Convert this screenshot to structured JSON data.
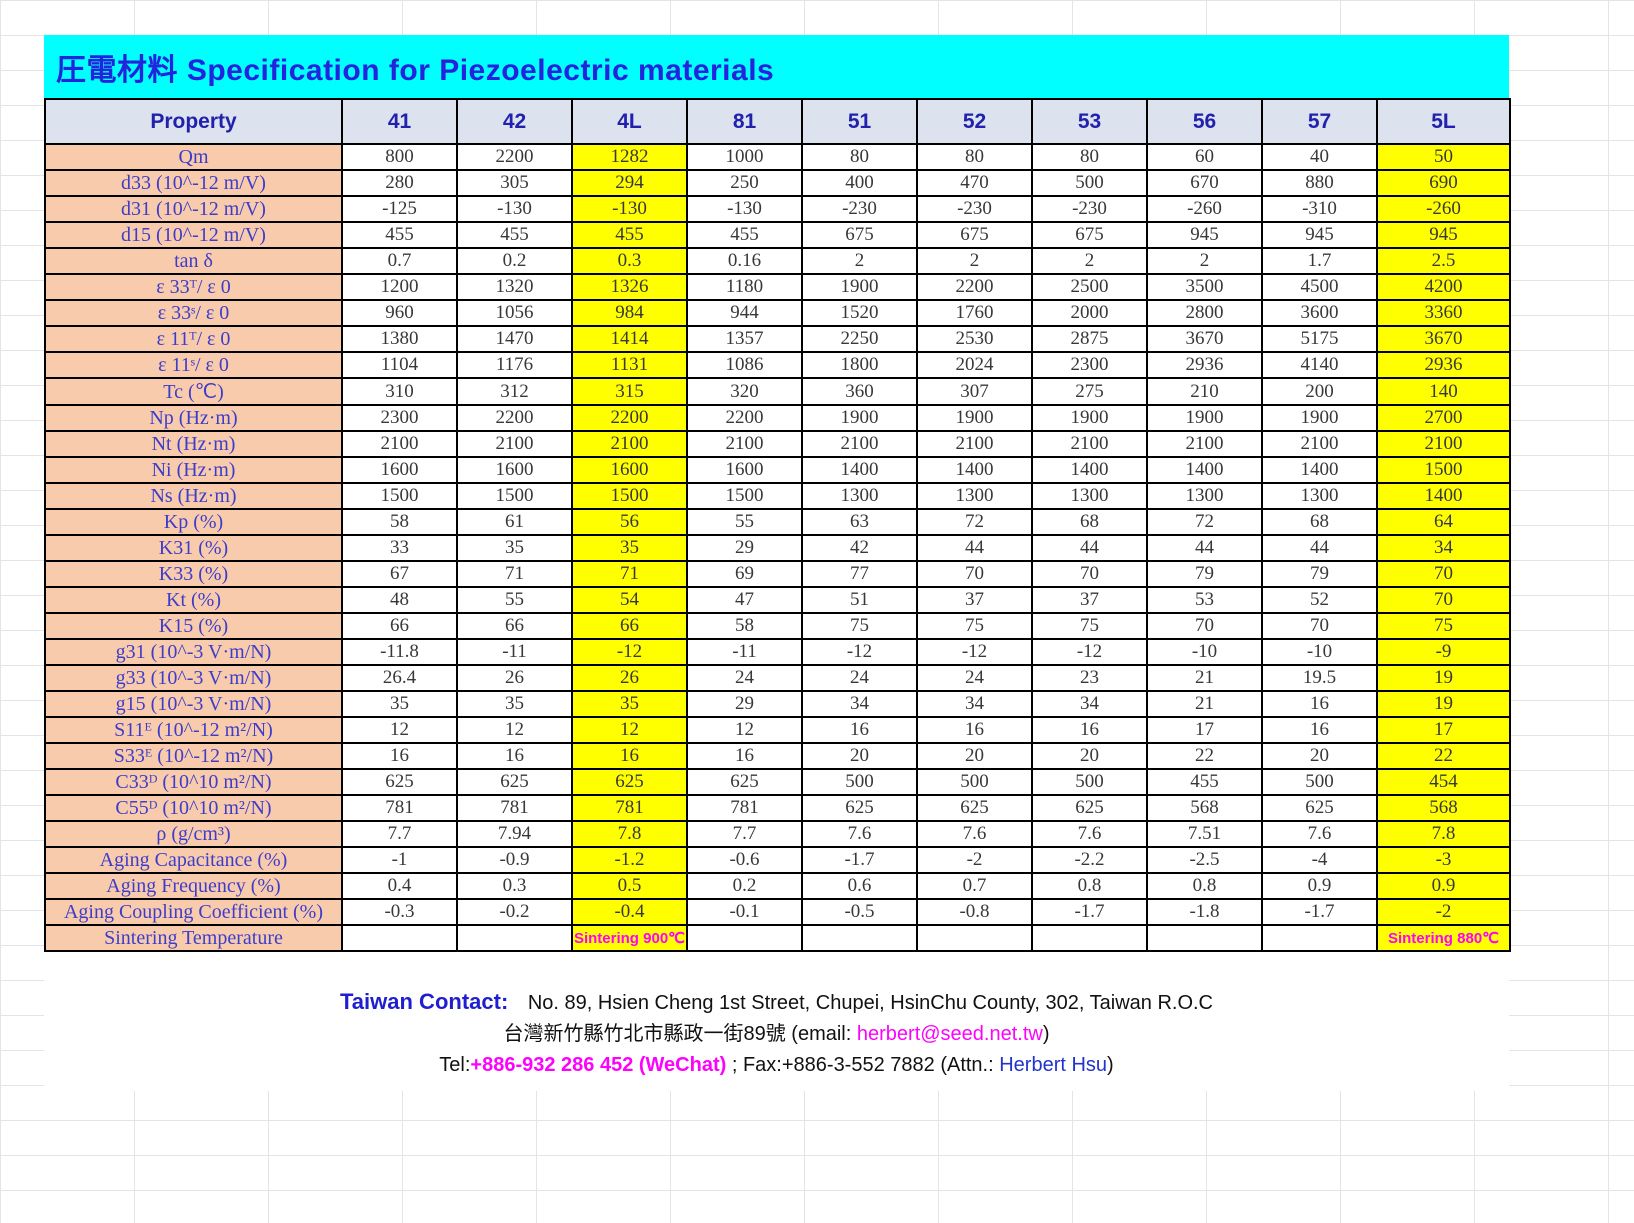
{
  "title": "圧電材料 Specification for Piezoelectric materials",
  "colors": {
    "title_bg": "#00FFFF",
    "title_text": "#2424DD",
    "header_bg": "#DDE2EF",
    "property_bg": "#F8CBAD",
    "highlight_bg": "#FFFF00",
    "sintering_text": "#FF00FF",
    "accent_blue": "#2233CC",
    "accent_magenta": "#FF00FF"
  },
  "table": {
    "header": [
      "Property",
      "41",
      "42",
      "4L",
      "81",
      "51",
      "52",
      "53",
      "56",
      "57",
      "5L"
    ],
    "highlight_value_columns": [
      2,
      9
    ],
    "rows": [
      {
        "label": "Qm",
        "values": [
          "800",
          "2200",
          "1282",
          "1000",
          "80",
          "80",
          "80",
          "60",
          "40",
          "50"
        ]
      },
      {
        "label": "d33 (10^-12 m/V)",
        "values": [
          "280",
          "305",
          "294",
          "250",
          "400",
          "470",
          "500",
          "670",
          "880",
          "690"
        ]
      },
      {
        "label": "d31 (10^-12 m/V)",
        "values": [
          "-125",
          "-130",
          "-130",
          "-130",
          "-230",
          "-230",
          "-230",
          "-260",
          "-310",
          "-260"
        ]
      },
      {
        "label": "d15 (10^-12 m/V)",
        "values": [
          "455",
          "455",
          "455",
          "455",
          "675",
          "675",
          "675",
          "945",
          "945",
          "945"
        ]
      },
      {
        "label": "tan δ",
        "values": [
          "0.7",
          "0.2",
          "0.3",
          "0.16",
          "2",
          "2",
          "2",
          "2",
          "1.7",
          "2.5"
        ]
      },
      {
        "label": "ε 33ᵀ/ ε 0",
        "values": [
          "1200",
          "1320",
          "1326",
          "1180",
          "1900",
          "2200",
          "2500",
          "3500",
          "4500",
          "4200"
        ]
      },
      {
        "label": "ε 33ˢ/ ε 0",
        "values": [
          "960",
          "1056",
          "984",
          "944",
          "1520",
          "1760",
          "2000",
          "2800",
          "3600",
          "3360"
        ]
      },
      {
        "label": "ε 11ᵀ/ ε 0",
        "values": [
          "1380",
          "1470",
          "1414",
          "1357",
          "2250",
          "2530",
          "2875",
          "3670",
          "5175",
          "3670"
        ]
      },
      {
        "label": "ε 11ˢ/ ε 0",
        "values": [
          "1104",
          "1176",
          "1131",
          "1086",
          "1800",
          "2024",
          "2300",
          "2936",
          "4140",
          "2936"
        ]
      },
      {
        "label": "Tc (℃)",
        "values": [
          "310",
          "312",
          "315",
          "320",
          "360",
          "307",
          "275",
          "210",
          "200",
          "140"
        ]
      },
      {
        "label": "Np (Hz·m)",
        "values": [
          "2300",
          "2200",
          "2200",
          "2200",
          "1900",
          "1900",
          "1900",
          "1900",
          "1900",
          "2700"
        ]
      },
      {
        "label": "Nt (Hz·m)",
        "values": [
          "2100",
          "2100",
          "2100",
          "2100",
          "2100",
          "2100",
          "2100",
          "2100",
          "2100",
          "2100"
        ]
      },
      {
        "label": "Ni (Hz·m)",
        "values": [
          "1600",
          "1600",
          "1600",
          "1600",
          "1400",
          "1400",
          "1400",
          "1400",
          "1400",
          "1500"
        ]
      },
      {
        "label": "Ns (Hz·m)",
        "values": [
          "1500",
          "1500",
          "1500",
          "1500",
          "1300",
          "1300",
          "1300",
          "1300",
          "1300",
          "1400"
        ]
      },
      {
        "label": "Kp (%)",
        "values": [
          "58",
          "61",
          "56",
          "55",
          "63",
          "72",
          "68",
          "72",
          "68",
          "64"
        ]
      },
      {
        "label": "K31 (%)",
        "values": [
          "33",
          "35",
          "35",
          "29",
          "42",
          "44",
          "44",
          "44",
          "44",
          "34"
        ]
      },
      {
        "label": "K33 (%)",
        "values": [
          "67",
          "71",
          "71",
          "69",
          "77",
          "70",
          "70",
          "79",
          "79",
          "70"
        ]
      },
      {
        "label": "Kt (%)",
        "values": [
          "48",
          "55",
          "54",
          "47",
          "51",
          "37",
          "37",
          "53",
          "52",
          "70"
        ]
      },
      {
        "label": "K15 (%)",
        "values": [
          "66",
          "66",
          "66",
          "58",
          "75",
          "75",
          "75",
          "70",
          "70",
          "75"
        ]
      },
      {
        "label": "g31 (10^-3 V·m/N)",
        "values": [
          "-11.8",
          "-11",
          "-12",
          "-11",
          "-12",
          "-12",
          "-12",
          "-10",
          "-10",
          "-9"
        ]
      },
      {
        "label": "g33 (10^-3 V·m/N)",
        "values": [
          "26.4",
          "26",
          "26",
          "24",
          "24",
          "24",
          "23",
          "21",
          "19.5",
          "19"
        ]
      },
      {
        "label": "g15 (10^-3 V·m/N)",
        "values": [
          "35",
          "35",
          "35",
          "29",
          "34",
          "34",
          "34",
          "21",
          "16",
          "19"
        ]
      },
      {
        "label": "S11ᴱ (10^-12 m²/N)",
        "values": [
          "12",
          "12",
          "12",
          "12",
          "16",
          "16",
          "16",
          "17",
          "16",
          "17"
        ]
      },
      {
        "label": "S33ᴱ (10^-12 m²/N)",
        "values": [
          "16",
          "16",
          "16",
          "16",
          "20",
          "20",
          "20",
          "22",
          "20",
          "22"
        ]
      },
      {
        "label": "C33ᴰ (10^10 m²/N)",
        "values": [
          "625",
          "625",
          "625",
          "625",
          "500",
          "500",
          "500",
          "455",
          "500",
          "454"
        ]
      },
      {
        "label": "C55ᴰ (10^10 m²/N)",
        "values": [
          "781",
          "781",
          "781",
          "781",
          "625",
          "625",
          "625",
          "568",
          "625",
          "568"
        ]
      },
      {
        "label": "ρ  (g/cm³)",
        "values": [
          "7.7",
          "7.94",
          "7.8",
          "7.7",
          "7.6",
          "7.6",
          "7.6",
          "7.51",
          "7.6",
          "7.8"
        ]
      },
      {
        "label": "Aging Capacitance (%)",
        "values": [
          "-1",
          "-0.9",
          "-1.2",
          "-0.6",
          "-1.7",
          "-2",
          "-2.2",
          "-2.5",
          "-4",
          "-3"
        ]
      },
      {
        "label": "Aging Frequency (%)",
        "values": [
          "0.4",
          "0.3",
          "0.5",
          "0.2",
          "0.6",
          "0.7",
          "0.8",
          "0.8",
          "0.9",
          "0.9"
        ]
      },
      {
        "label": "Aging Coupling Coefficient (%)",
        "values": [
          "-0.3",
          "-0.2",
          "-0.4",
          "-0.1",
          "-0.5",
          "-0.8",
          "-1.7",
          "-1.8",
          "-1.7",
          "-2"
        ]
      },
      {
        "label": "Sintering Temperature",
        "type": "sintering",
        "values": [
          "",
          "",
          "Sintering 900℃",
          "",
          "",
          "",
          "",
          "",
          "",
          "Sintering 880℃"
        ]
      }
    ]
  },
  "footer": {
    "contact_label": "Taiwan Contact:",
    "address_en": "No. 89, Hsien Cheng  1st Street, Chupei,  HsinChu  County,  302, Taiwan R.O.C",
    "address_zh": "台灣新竹縣竹北市縣政一街89號",
    "email_prefix": "(email:",
    "email": "herbert@seed.net.tw",
    "email_suffix": ")",
    "tel_label": "Tel:",
    "tel_number": "+886-932 286 452 (WeChat)",
    "fax_part": "; Fax:+886-3-552 7882 (Attn.:",
    "attn_name": "Herbert Hsu",
    "close_paren": ")"
  }
}
